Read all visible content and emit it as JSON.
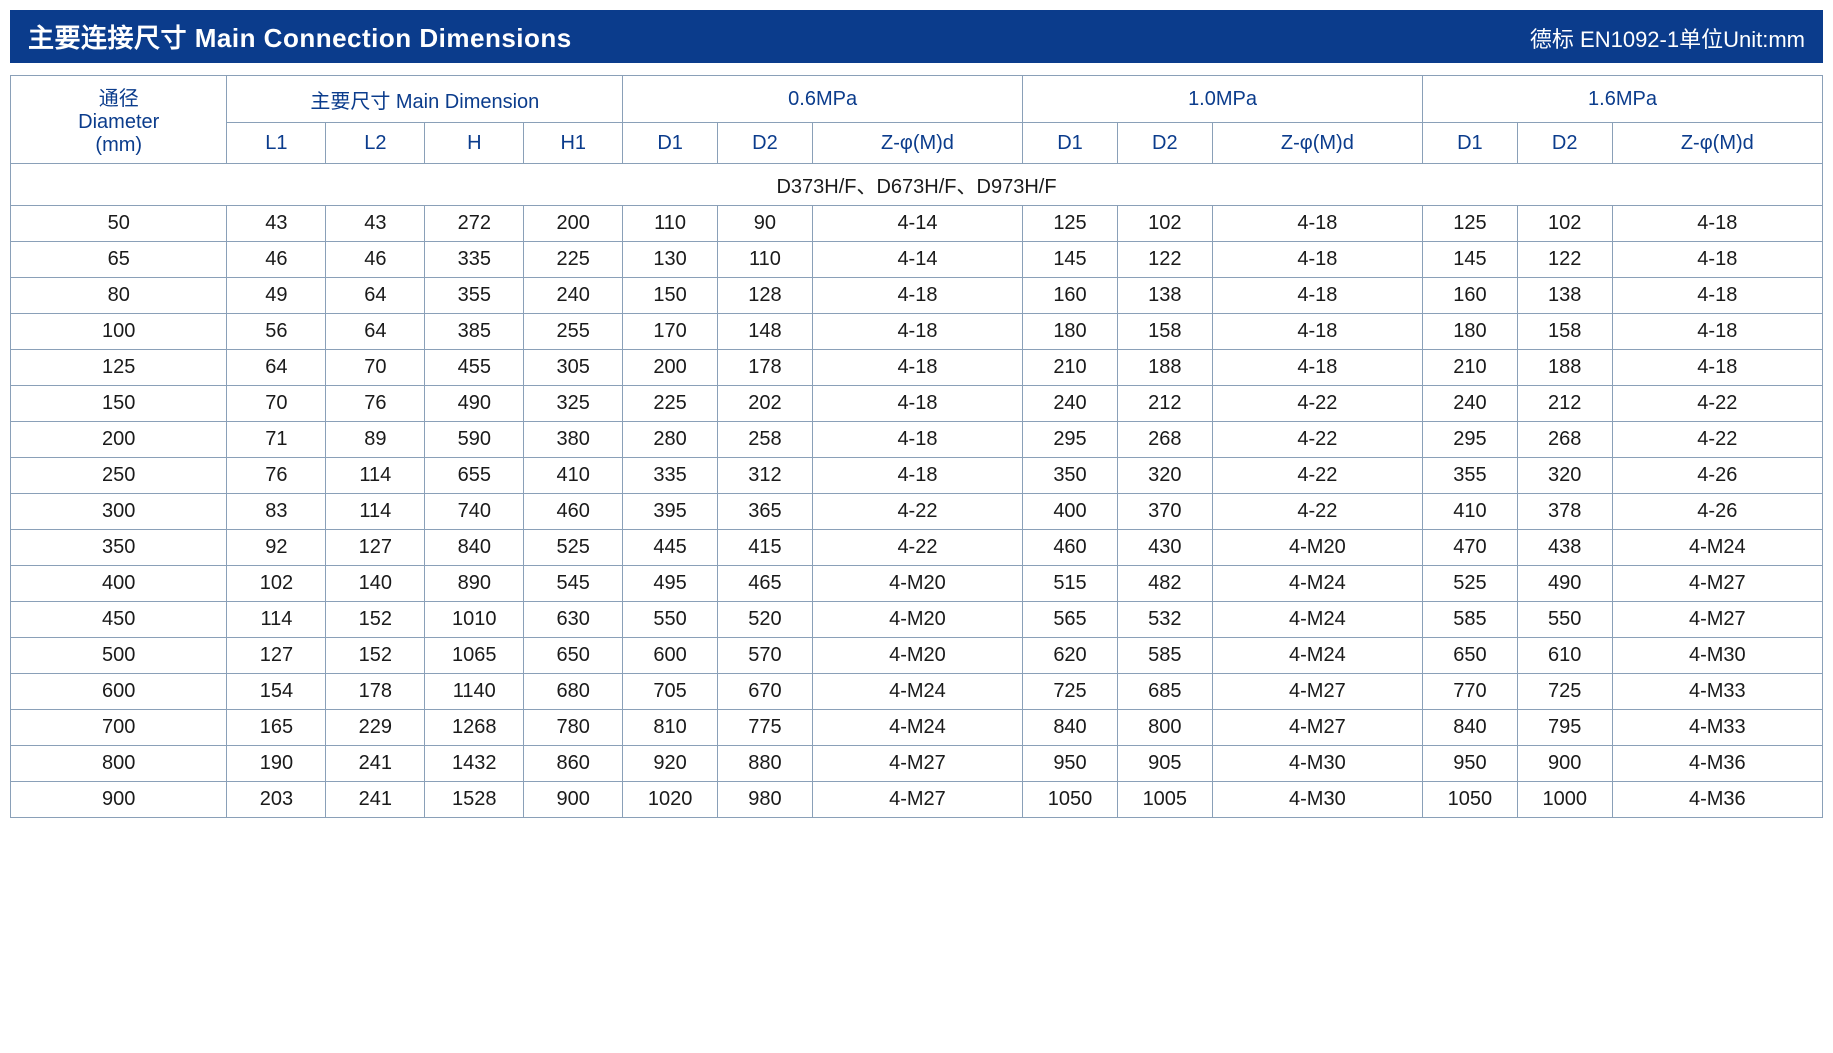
{
  "title_bar": {
    "left": "主要连接尺寸 Main Connection Dimensions",
    "right": "德标 EN1092-1单位Unit:mm",
    "bg_color": "#0b3c8c",
    "text_color": "#ffffff"
  },
  "table": {
    "border_color": "#8aa0b8",
    "header_text_color": "#0b3c8c",
    "cell_text_color": "#1a1a1a",
    "header_row1": {
      "diameter": "通径\nDiameter\n(mm)",
      "main_dim": "主要尺寸 Main Dimension",
      "p06": "0.6MPa",
      "p10": "1.0MPa",
      "p16": "1.6MPa"
    },
    "header_row2": {
      "L1": "L1",
      "L2": "L2",
      "H": "H",
      "H1": "H1",
      "D1a": "D1",
      "D2a": "D2",
      "Za": "Z-φ(M)d",
      "D1b": "D1",
      "D2b": "D2",
      "Zb": "Z-φ(M)d",
      "D1c": "D1",
      "D2c": "D2",
      "Zc": "Z-φ(M)d"
    },
    "section_label": "D373H/F、D673H/F、D973H/F",
    "rows": [
      [
        "50",
        "43",
        "43",
        "272",
        "200",
        "110",
        "90",
        "4-14",
        "125",
        "102",
        "4-18",
        "125",
        "102",
        "4-18"
      ],
      [
        "65",
        "46",
        "46",
        "335",
        "225",
        "130",
        "110",
        "4-14",
        "145",
        "122",
        "4-18",
        "145",
        "122",
        "4-18"
      ],
      [
        "80",
        "49",
        "64",
        "355",
        "240",
        "150",
        "128",
        "4-18",
        "160",
        "138",
        "4-18",
        "160",
        "138",
        "4-18"
      ],
      [
        "100",
        "56",
        "64",
        "385",
        "255",
        "170",
        "148",
        "4-18",
        "180",
        "158",
        "4-18",
        "180",
        "158",
        "4-18"
      ],
      [
        "125",
        "64",
        "70",
        "455",
        "305",
        "200",
        "178",
        "4-18",
        "210",
        "188",
        "4-18",
        "210",
        "188",
        "4-18"
      ],
      [
        "150",
        "70",
        "76",
        "490",
        "325",
        "225",
        "202",
        "4-18",
        "240",
        "212",
        "4-22",
        "240",
        "212",
        "4-22"
      ],
      [
        "200",
        "71",
        "89",
        "590",
        "380",
        "280",
        "258",
        "4-18",
        "295",
        "268",
        "4-22",
        "295",
        "268",
        "4-22"
      ],
      [
        "250",
        "76",
        "114",
        "655",
        "410",
        "335",
        "312",
        "4-18",
        "350",
        "320",
        "4-22",
        "355",
        "320",
        "4-26"
      ],
      [
        "300",
        "83",
        "114",
        "740",
        "460",
        "395",
        "365",
        "4-22",
        "400",
        "370",
        "4-22",
        "410",
        "378",
        "4-26"
      ],
      [
        "350",
        "92",
        "127",
        "840",
        "525",
        "445",
        "415",
        "4-22",
        "460",
        "430",
        "4-M20",
        "470",
        "438",
        "4-M24"
      ],
      [
        "400",
        "102",
        "140",
        "890",
        "545",
        "495",
        "465",
        "4-M20",
        "515",
        "482",
        "4-M24",
        "525",
        "490",
        "4-M27"
      ],
      [
        "450",
        "114",
        "152",
        "1010",
        "630",
        "550",
        "520",
        "4-M20",
        "565",
        "532",
        "4-M24",
        "585",
        "550",
        "4-M27"
      ],
      [
        "500",
        "127",
        "152",
        "1065",
        "650",
        "600",
        "570",
        "4-M20",
        "620",
        "585",
        "4-M24",
        "650",
        "610",
        "4-M30"
      ],
      [
        "600",
        "154",
        "178",
        "1140",
        "680",
        "705",
        "670",
        "4-M24",
        "725",
        "685",
        "4-M27",
        "770",
        "725",
        "4-M33"
      ],
      [
        "700",
        "165",
        "229",
        "1268",
        "780",
        "810",
        "775",
        "4-M24",
        "840",
        "800",
        "4-M27",
        "840",
        "795",
        "4-M33"
      ],
      [
        "800",
        "190",
        "241",
        "1432",
        "860",
        "920",
        "880",
        "4-M27",
        "950",
        "905",
        "4-M30",
        "950",
        "900",
        "4-M36"
      ],
      [
        "900",
        "203",
        "241",
        "1528",
        "900",
        "1020",
        "980",
        "4-M27",
        "1050",
        "1005",
        "4-M30",
        "1050",
        "1000",
        "4-M36"
      ]
    ]
  }
}
